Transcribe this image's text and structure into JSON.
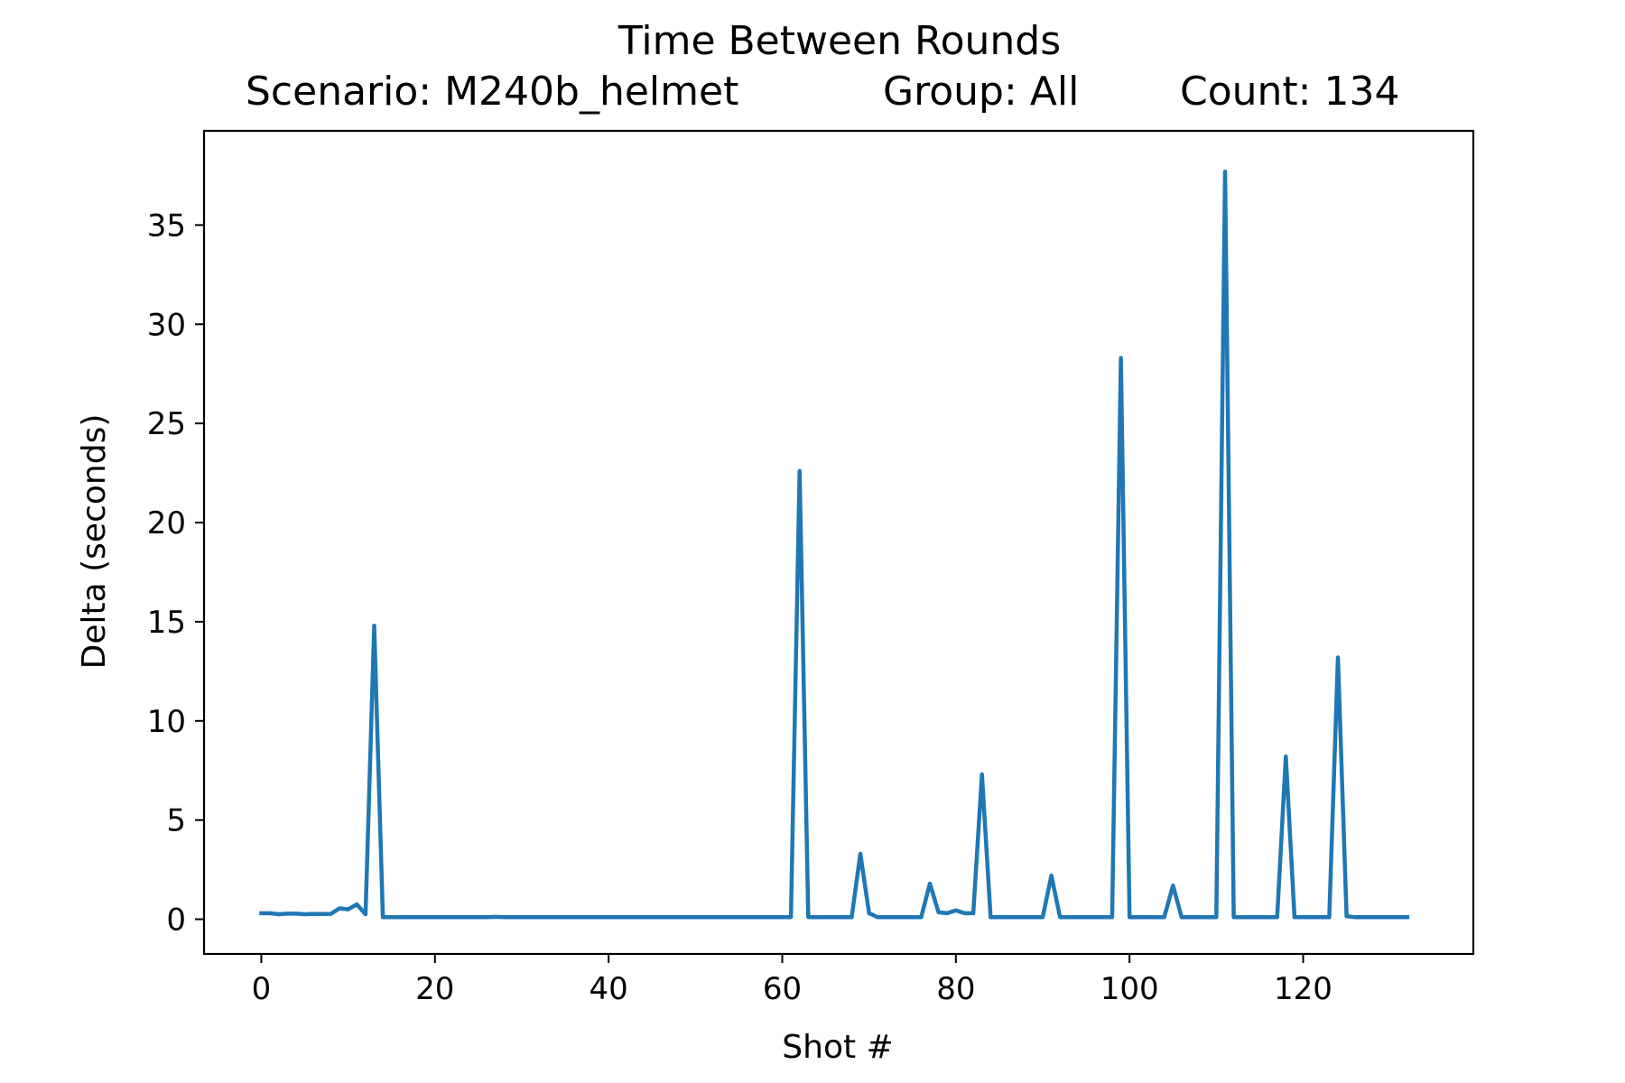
{
  "chart_data": {
    "type": "line",
    "title": "Time Between Rounds",
    "subtitle": {
      "scenario": "Scenario: M240b_helmet",
      "group": "Group: All",
      "count": "Count: 134"
    },
    "xlabel": "Shot #",
    "ylabel": "Delta (seconds)",
    "xlim": [
      -6.6,
      139.6
    ],
    "ylim": [
      -1.75,
      39.75
    ],
    "xticks": [
      0,
      20,
      40,
      60,
      80,
      100,
      120
    ],
    "yticks": [
      0,
      5,
      10,
      15,
      20,
      25,
      30,
      35
    ],
    "grid": false,
    "legend": "none",
    "line_color": "#1f77b4",
    "series": [
      {
        "x": [
          0,
          1,
          2,
          3,
          4,
          5,
          6,
          7,
          8,
          9,
          10,
          11,
          12,
          13,
          14,
          15,
          16,
          17,
          18,
          19,
          20,
          21,
          22,
          23,
          24,
          25,
          26,
          27,
          28,
          29,
          30,
          31,
          32,
          33,
          34,
          35,
          36,
          37,
          38,
          39,
          40,
          41,
          42,
          43,
          44,
          45,
          46,
          47,
          48,
          49,
          50,
          51,
          52,
          53,
          54,
          55,
          56,
          57,
          58,
          59,
          60,
          61,
          62,
          63,
          64,
          65,
          66,
          67,
          68,
          69,
          70,
          71,
          72,
          73,
          74,
          75,
          76,
          77,
          78,
          79,
          80,
          81,
          82,
          83,
          84,
          85,
          86,
          87,
          88,
          89,
          90,
          91,
          92,
          93,
          94,
          95,
          96,
          97,
          98,
          99,
          100,
          101,
          102,
          103,
          104,
          105,
          106,
          107,
          108,
          109,
          110,
          111,
          112,
          113,
          114,
          115,
          116,
          117,
          118,
          119,
          120,
          121,
          122,
          123,
          124,
          125,
          126,
          127,
          128,
          129,
          130,
          131,
          132
        ],
        "y": [
          0.3,
          0.3,
          0.25,
          0.28,
          0.28,
          0.25,
          0.27,
          0.26,
          0.27,
          0.55,
          0.5,
          0.75,
          0.25,
          14.8,
          0.1,
          0.1,
          0.1,
          0.1,
          0.1,
          0.1,
          0.1,
          0.1,
          0.1,
          0.1,
          0.1,
          0.1,
          0.1,
          0.12,
          0.1,
          0.1,
          0.1,
          0.1,
          0.1,
          0.1,
          0.1,
          0.1,
          0.1,
          0.1,
          0.1,
          0.1,
          0.1,
          0.1,
          0.1,
          0.1,
          0.1,
          0.1,
          0.1,
          0.1,
          0.1,
          0.1,
          0.1,
          0.1,
          0.1,
          0.1,
          0.1,
          0.1,
          0.1,
          0.1,
          0.1,
          0.1,
          0.1,
          0.1,
          22.6,
          0.1,
          0.1,
          0.1,
          0.1,
          0.1,
          0.1,
          3.3,
          0.3,
          0.1,
          0.1,
          0.1,
          0.1,
          0.1,
          0.1,
          1.8,
          0.35,
          0.3,
          0.45,
          0.3,
          0.3,
          7.3,
          0.1,
          0.1,
          0.1,
          0.1,
          0.1,
          0.1,
          0.1,
          2.2,
          0.1,
          0.1,
          0.1,
          0.1,
          0.1,
          0.1,
          0.1,
          28.3,
          0.1,
          0.1,
          0.1,
          0.1,
          0.1,
          1.7,
          0.1,
          0.1,
          0.1,
          0.1,
          0.1,
          37.7,
          0.1,
          0.1,
          0.1,
          0.1,
          0.1,
          0.1,
          8.2,
          0.1,
          0.1,
          0.1,
          0.1,
          0.1,
          13.2,
          0.15,
          0.1,
          0.1,
          0.1,
          0.1,
          0.1,
          0.1,
          0.1
        ]
      }
    ]
  }
}
